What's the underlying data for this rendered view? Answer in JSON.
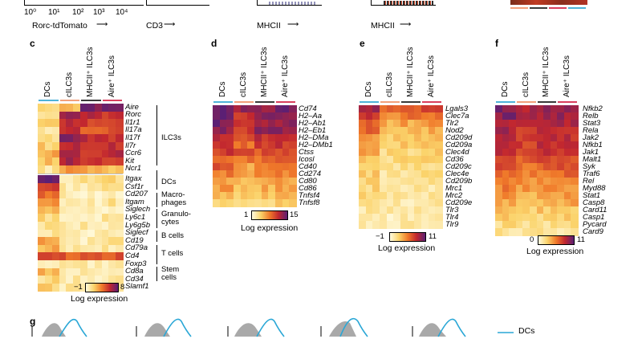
{
  "top_row": {
    "tick_labels": [
      "10⁰",
      "10¹",
      "10²",
      "10³",
      "10⁴"
    ],
    "axis1": "Rorc-tdTomato",
    "axis2": "CD3",
    "axis3": "MHCII",
    "axis4": "MHCII"
  },
  "panel_c": {
    "letter": "c",
    "columns": [
      "DCs",
      "cILC3s",
      "MHCII⁺ ILC3s",
      "Aire⁺ ILC3s"
    ],
    "genes": [
      "Aire",
      "Rorc",
      "Il1r1",
      "Il17a",
      "Il17f",
      "Il7r",
      "Ccr6",
      "Kit",
      "Ncr1",
      "Itgax",
      "Csf1r",
      "Cd207",
      "Itgam",
      "Siglech",
      "Ly6c1",
      "Ly6g5b",
      "Siglecf",
      "Cd19",
      "Cd79a",
      "Cd4",
      "Foxp3",
      "Cd8a",
      "Cd34",
      "Slamf1"
    ],
    "groups": [
      "ILC3s",
      "DCs",
      "Macro-",
      "phages",
      "Granulo-",
      "cytes",
      "B cells",
      "T cells",
      "Stem",
      "cells"
    ],
    "colorbar_min": "−1",
    "colorbar_max": "8",
    "colorbar_title": "Log expression"
  },
  "panel_d": {
    "letter": "d",
    "columns": [
      "DCs",
      "cILC3s",
      "MHCII⁺ ILC3s",
      "Aire⁺ ILC3s"
    ],
    "genes": [
      "Cd74",
      "H2–Aa",
      "H2–Ab1",
      "H2–Eb1",
      "H2–DMa",
      "H2–DMb1",
      "Ctss",
      "Icosl",
      "Cd40",
      "Cd274",
      "Cd80",
      "Cd86",
      "Tnfsf4",
      "Tnfsf8"
    ],
    "colorbar_min": "1",
    "colorbar_max": "15",
    "colorbar_title": "Log expression"
  },
  "panel_e": {
    "letter": "e",
    "columns": [
      "DCs",
      "cILC3s",
      "MHCII⁺ ILC3s",
      "Aire⁺ ILC3s"
    ],
    "genes": [
      "Lgals3",
      "Clec7a",
      "Tlr2",
      "Nod2",
      "Cd209d",
      "Cd209a",
      "Clec4d",
      "Cd36",
      "Cd209c",
      "Clec4e",
      "Cd209b",
      "Mrc1",
      "Mrc2",
      "Cd209e",
      "Tlr3",
      "Tlr4",
      "Tlr9"
    ],
    "colorbar_min": "−1",
    "colorbar_max": "11",
    "colorbar_title": "Log expression"
  },
  "panel_f": {
    "letter": "f",
    "columns": [
      "DCs",
      "cILC3s",
      "MHCII⁺ ILC3s",
      "Aire⁺ ILC3s"
    ],
    "genes": [
      "Nfkb2",
      "Relb",
      "Stat3",
      "Rela",
      "Jak2",
      "Nfkb1",
      "Jak1",
      "Malt1",
      "Syk",
      "Traf6",
      "Rel",
      "Myd88",
      "Stat1",
      "Casp8",
      "Card11",
      "Casp1",
      "Pycard",
      "Card9"
    ],
    "colorbar_min": "0",
    "colorbar_max": "11",
    "colorbar_title": "Log expression"
  },
  "panel_g": {
    "letter": "g",
    "legend": "DCs"
  },
  "colors": {
    "DCs": "#4fb3d9",
    "cILC3s": "#f2a07b",
    "MHCII": "#3a3a3a",
    "Aire": "#d9405e"
  }
}
